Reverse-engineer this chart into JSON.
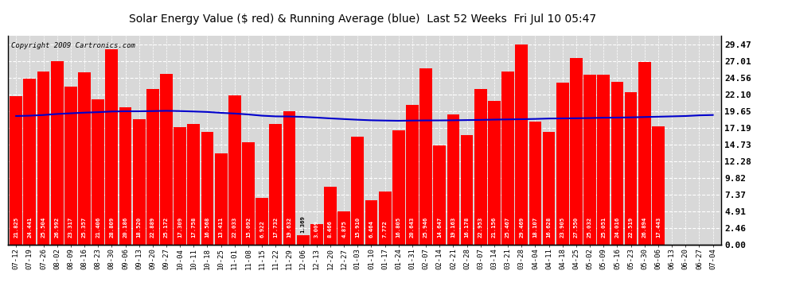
{
  "title": "Solar Energy Value ($ red) & Running Average (blue)  Last 52 Weeks  Fri Jul 10 05:47",
  "copyright": "Copyright 2009 Cartronics.com",
  "bar_color": "#ff0000",
  "avg_line_color": "#0000cc",
  "background_color": "#ffffff",
  "plot_bg_color": "#d8d8d8",
  "grid_color": "#ffffff",
  "yticks": [
    0.0,
    2.46,
    4.91,
    7.37,
    9.82,
    12.28,
    14.73,
    17.19,
    19.65,
    22.1,
    24.56,
    27.01,
    29.47
  ],
  "ymax": 30.8,
  "categories": [
    "07-12",
    "07-19",
    "07-26",
    "08-02",
    "08-09",
    "08-16",
    "08-23",
    "08-30",
    "09-06",
    "09-13",
    "09-20",
    "09-27",
    "10-04",
    "10-11",
    "10-18",
    "10-25",
    "11-01",
    "11-08",
    "11-15",
    "11-22",
    "11-29",
    "12-06",
    "12-13",
    "12-20",
    "12-27",
    "01-03",
    "01-10",
    "01-17",
    "01-24",
    "01-31",
    "02-07",
    "02-14",
    "02-21",
    "02-28",
    "03-07",
    "03-14",
    "03-21",
    "03-28",
    "04-04",
    "04-11",
    "04-18",
    "04-25",
    "05-02",
    "05-09",
    "05-16",
    "05-23",
    "05-30",
    "06-06",
    "06-13",
    "06-20",
    "06-27",
    "07-04"
  ],
  "values": [
    21.825,
    24.441,
    25.504,
    26.992,
    23.317,
    25.357,
    21.406,
    28.809,
    20.186,
    18.52,
    22.889,
    25.172,
    17.309,
    17.758,
    16.568,
    13.411,
    22.033,
    15.092,
    6.922,
    17.732,
    19.632,
    1.369,
    3.009,
    8.466,
    4.875,
    15.91,
    6.464,
    7.772,
    16.805,
    20.643,
    25.946,
    14.647,
    19.163,
    16.178,
    22.953,
    21.156,
    25.467,
    29.469,
    18.107,
    16.628,
    23.905,
    27.55,
    25.032,
    25.051,
    24.016,
    22.519,
    26.894,
    17.443,
    0.0,
    0.0,
    0.0,
    0.0
  ],
  "running_avg": [
    18.95,
    19.0,
    19.1,
    19.25,
    19.35,
    19.45,
    19.52,
    19.62,
    19.65,
    19.65,
    19.68,
    19.72,
    19.68,
    19.62,
    19.55,
    19.42,
    19.32,
    19.18,
    19.0,
    18.9,
    18.88,
    18.82,
    18.72,
    18.6,
    18.5,
    18.4,
    18.32,
    18.28,
    18.25,
    18.28,
    18.3,
    18.3,
    18.32,
    18.35,
    18.38,
    18.42,
    18.45,
    18.48,
    18.52,
    18.58,
    18.6,
    18.62,
    18.65,
    18.7,
    18.72,
    18.75,
    18.8,
    18.85,
    18.9,
    18.95,
    19.05,
    19.1
  ],
  "ylabel_right_fontsize": 8,
  "bar_width": 0.92,
  "value_fontsize": 5.2,
  "xlabel_fontsize": 6.5,
  "title_fontsize": 10
}
